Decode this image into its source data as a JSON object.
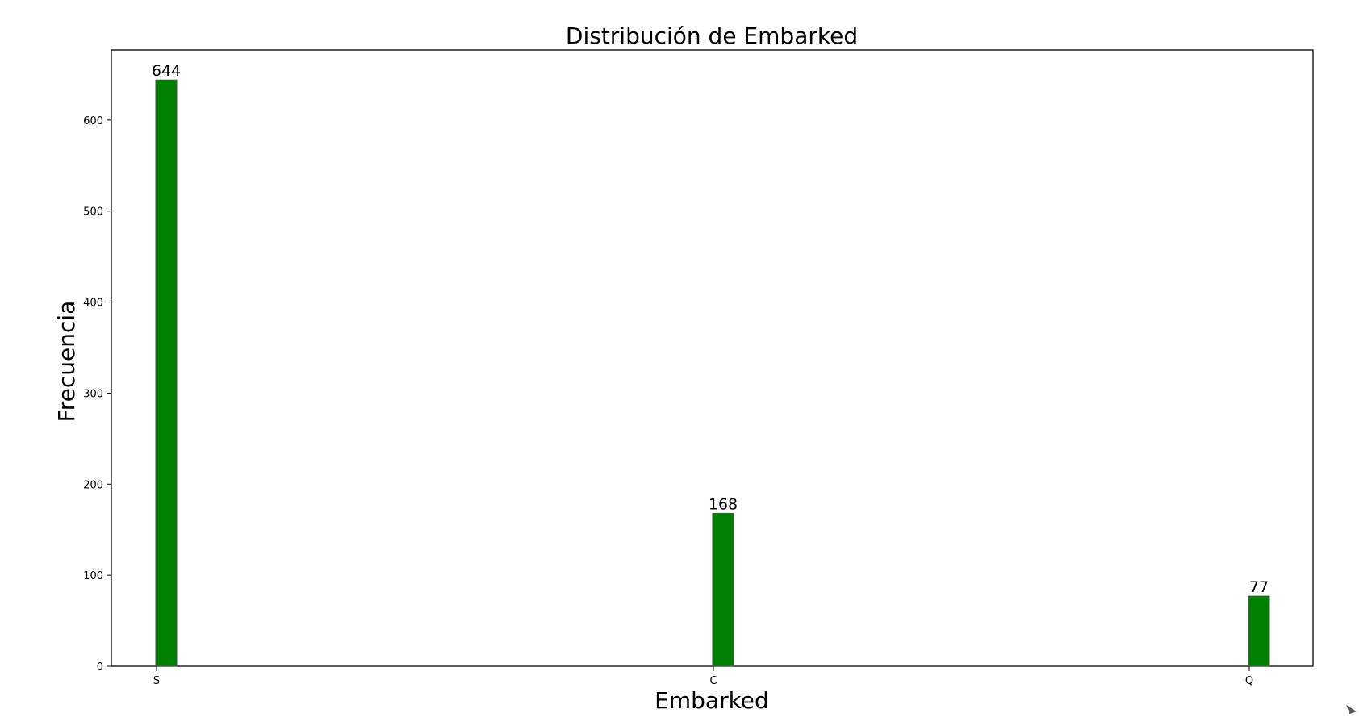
{
  "chart_data": {
    "type": "bar",
    "title": "Distribución de Embarked",
    "xlabel": "Embarked",
    "ylabel": "Frecuencia",
    "categories": [
      "S",
      "C",
      "Q"
    ],
    "values": [
      644,
      168,
      77
    ],
    "data_labels": [
      "644",
      "168",
      "77"
    ],
    "ylim": [
      0,
      677
    ],
    "yticks": [
      0,
      100,
      200,
      300,
      400,
      500,
      600
    ],
    "grid": false,
    "colors": {
      "bar_fill": "#008000",
      "bar_edge": "#4d4d4d",
      "axis": "#000000"
    }
  }
}
